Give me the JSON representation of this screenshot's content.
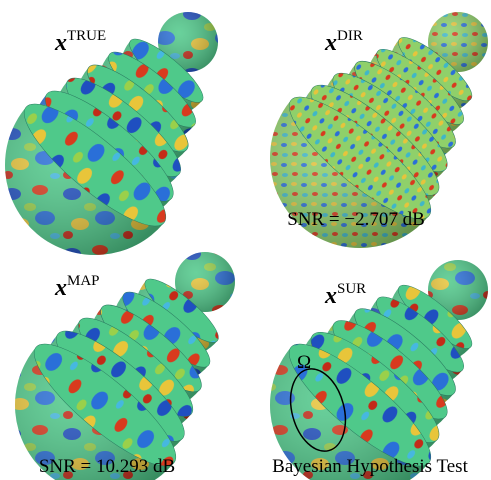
{
  "panels": [
    {
      "label": {
        "base": "x",
        "sup": "TRUE"
      }
    },
    {
      "label": {
        "base": "x",
        "sup": "DIR"
      },
      "caption": "SNR = −2.707 dB"
    },
    {
      "label": {
        "base": "x",
        "sup": "MAP"
      },
      "caption": "SNR = 10.293 dB"
    },
    {
      "label": {
        "base": "x",
        "sup": "SUR"
      },
      "caption": "Bayesian Hypothesis Test",
      "region": "Ω"
    }
  ]
}
